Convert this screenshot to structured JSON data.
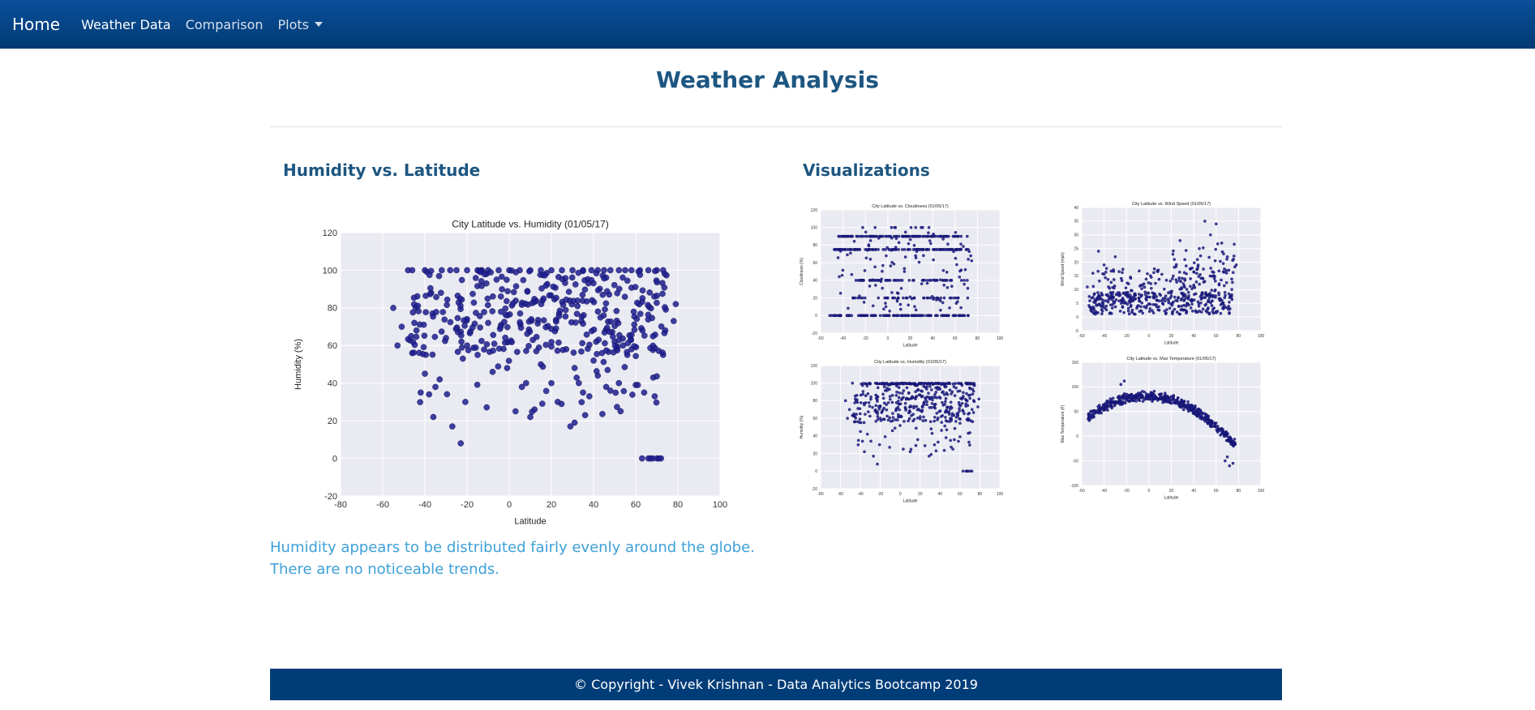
{
  "nav": {
    "brand": "Home",
    "items": [
      {
        "label": "Weather Data",
        "active": true
      },
      {
        "label": "Comparison",
        "active": false
      },
      {
        "label": "Plots",
        "active": false,
        "dropdown": true
      }
    ]
  },
  "page": {
    "title": "Weather Analysis"
  },
  "main": {
    "heading": "Humidity vs. Latitude",
    "description": "Humidity appears to be distributed fairly evenly around the globe. There are no noticeable trends."
  },
  "sidebar": {
    "heading": "Visualizations"
  },
  "footer": {
    "text": "© Copyright - Vivek Krishnan - Data Analytics Bootcamp 2019"
  },
  "colors": {
    "navbar_top": "#0b4f9a",
    "navbar_bottom": "#003a73",
    "heading": "#1d5681",
    "description": "#3ea0d8",
    "footer_bg": "#003d78",
    "plot_bg": "#eaeaf2",
    "marker": "#1f1f8f"
  },
  "chart_data": [
    {
      "id": "main",
      "type": "scatter",
      "title": "City Latitude vs. Humidity (01/05/17)",
      "xlabel": "Latitude",
      "ylabel": "Humidity (%)",
      "xlim": [
        -80,
        100
      ],
      "ylim": [
        -20,
        120
      ],
      "xticks": [
        -80,
        -60,
        -40,
        -20,
        0,
        20,
        40,
        60,
        80,
        100
      ],
      "yticks": [
        -20,
        0,
        20,
        40,
        60,
        80,
        100,
        120
      ],
      "grid": true,
      "seed": 11,
      "points": [
        [
          -55,
          80
        ],
        [
          -53,
          60
        ],
        [
          -51,
          70
        ],
        [
          -48,
          100
        ],
        [
          -46,
          100
        ],
        [
          -46,
          56
        ],
        [
          -45,
          72
        ],
        [
          -44,
          68
        ],
        [
          -42,
          35
        ],
        [
          -40,
          45
        ],
        [
          -38,
          34
        ],
        [
          -37,
          88
        ],
        [
          -36,
          22
        ],
        [
          -35,
          38
        ],
        [
          -33,
          42
        ],
        [
          -30,
          64
        ],
        [
          -27,
          17
        ],
        [
          -23,
          8
        ],
        [
          -22,
          53
        ],
        [
          -20,
          60
        ],
        [
          -15,
          55
        ],
        [
          -10,
          72
        ],
        [
          -6,
          95
        ],
        [
          -1,
          48
        ],
        [
          3,
          25
        ],
        [
          6,
          38
        ],
        [
          8,
          40
        ],
        [
          10,
          22
        ],
        [
          12,
          26
        ],
        [
          15,
          50
        ],
        [
          20,
          40
        ],
        [
          23,
          30
        ],
        [
          27,
          58
        ],
        [
          29,
          17
        ],
        [
          31,
          19
        ],
        [
          33,
          40
        ],
        [
          35,
          35
        ],
        [
          36,
          23
        ],
        [
          38,
          33
        ],
        [
          40,
          52
        ],
        [
          42,
          44
        ],
        [
          44,
          56
        ],
        [
          46,
          38
        ],
        [
          48,
          36
        ],
        [
          50,
          62
        ],
        [
          52,
          40
        ],
        [
          54,
          60
        ],
        [
          56,
          55
        ],
        [
          58,
          58
        ],
        [
          60,
          39
        ],
        [
          61,
          39
        ],
        [
          63,
          0
        ],
        [
          64,
          35
        ],
        [
          66,
          0
        ],
        [
          67,
          0
        ],
        [
          68,
          0
        ],
        [
          69,
          33
        ],
        [
          70,
          0
        ],
        [
          71,
          0
        ],
        [
          72,
          0
        ],
        [
          73,
          55
        ],
        [
          74,
          68
        ],
        [
          78,
          73
        ],
        [
          79,
          82
        ],
        [
          73,
          100
        ],
        [
          70,
          100
        ],
        [
          66,
          100
        ],
        [
          62,
          100
        ],
        [
          58,
          100
        ],
        [
          55,
          100
        ],
        [
          52,
          100
        ],
        [
          48,
          100
        ],
        [
          45,
          100
        ],
        [
          42,
          100
        ],
        [
          39,
          100
        ],
        [
          35,
          100
        ],
        [
          30,
          100
        ],
        [
          25,
          100
        ],
        [
          20,
          100
        ],
        [
          15,
          100
        ],
        [
          10,
          100
        ],
        [
          5,
          100
        ],
        [
          0,
          100
        ],
        [
          -5,
          100
        ],
        [
          -10,
          100
        ],
        [
          -15,
          100
        ],
        [
          -20,
          100
        ],
        [
          -25,
          100
        ],
        [
          -28,
          100
        ],
        [
          -32,
          100
        ],
        [
          -40,
          100
        ],
        [
          -13,
          100
        ]
      ],
      "bands": [
        {
          "x": [
            -48,
            75
          ],
          "y": [
            55,
            100
          ],
          "n": 300
        },
        {
          "x": [
            -45,
            70
          ],
          "y": [
            20,
            95
          ],
          "n": 70
        }
      ]
    },
    {
      "id": "cloudiness",
      "type": "scatter",
      "title": "City Latitude vs. Cloudiness (01/05/17)",
      "xlabel": "Latitude",
      "ylabel": "Cloudiness (%)",
      "xlim": [
        -60,
        100
      ],
      "ylim": [
        -20,
        120
      ],
      "xticks": [
        -60,
        -40,
        -20,
        0,
        20,
        40,
        60,
        80,
        100
      ],
      "yticks": [
        -20,
        0,
        20,
        40,
        60,
        80,
        100,
        120
      ],
      "grid": true,
      "seed": 23,
      "rows": [
        {
          "y": 0,
          "x": [
            -52,
            72
          ],
          "n": 130
        },
        {
          "y": 20,
          "x": [
            -35,
            72
          ],
          "n": 40
        },
        {
          "y": 40,
          "x": [
            -30,
            72
          ],
          "n": 60
        },
        {
          "y": 75,
          "x": [
            -48,
            72
          ],
          "n": 120
        },
        {
          "y": 90,
          "x": [
            -45,
            72
          ],
          "n": 110
        },
        {
          "y": 100,
          "x": [
            -25,
            40
          ],
          "n": 10
        }
      ],
      "bands": [
        {
          "x": [
            -45,
            75
          ],
          "y": [
            5,
            95
          ],
          "n": 120
        }
      ]
    },
    {
      "id": "windspeed",
      "type": "scatter",
      "title": "City Latitude vs. Wind Speed (01/05/17)",
      "xlabel": "Latitude",
      "ylabel": "Wind Speed (mph)",
      "xlim": [
        -60,
        100
      ],
      "ylim": [
        -5,
        40
      ],
      "xticks": [
        -60,
        -40,
        -20,
        0,
        20,
        40,
        60,
        80,
        100
      ],
      "yticks": [
        -5,
        0,
        5,
        10,
        15,
        20,
        25,
        30,
        35,
        40
      ],
      "grid": true,
      "seed": 37,
      "points": [
        [
          -45,
          24
        ],
        [
          -40,
          19
        ],
        [
          -30,
          22
        ],
        [
          50,
          35
        ],
        [
          60,
          34
        ],
        [
          65,
          27
        ],
        [
          70,
          22
        ],
        [
          78,
          19
        ],
        [
          55,
          30
        ],
        [
          45,
          25
        ],
        [
          -50,
          16
        ],
        [
          -55,
          11
        ]
      ],
      "bands": [
        {
          "x": [
            -55,
            75
          ],
          "y": [
            1,
            9
          ],
          "n": 330
        },
        {
          "x": [
            -50,
            75
          ],
          "y": [
            6,
            18
          ],
          "n": 150
        },
        {
          "x": [
            20,
            78
          ],
          "y": [
            12,
            28
          ],
          "n": 45
        }
      ]
    },
    {
      "id": "humidity_small",
      "type": "scatter",
      "title": "City Latitude vs. Humidity (01/05/17)",
      "xlabel": "Latitude",
      "ylabel": "Humidity (%)",
      "xlim": [
        -80,
        100
      ],
      "ylim": [
        -20,
        120
      ],
      "xticks": [
        -80,
        -60,
        -40,
        -20,
        0,
        20,
        40,
        60,
        80,
        100
      ],
      "yticks": [
        -20,
        0,
        20,
        40,
        60,
        80,
        100,
        120
      ],
      "grid": true,
      "seed": 11,
      "points": [
        [
          -55,
          80
        ],
        [
          -53,
          60
        ],
        [
          -51,
          70
        ],
        [
          -48,
          100
        ],
        [
          -46,
          56
        ],
        [
          -42,
          35
        ],
        [
          -40,
          45
        ],
        [
          -38,
          34
        ],
        [
          -36,
          22
        ],
        [
          -33,
          42
        ],
        [
          -27,
          17
        ],
        [
          -23,
          8
        ],
        [
          -20,
          60
        ],
        [
          3,
          25
        ],
        [
          10,
          22
        ],
        [
          29,
          17
        ],
        [
          31,
          19
        ],
        [
          36,
          23
        ],
        [
          38,
          33
        ],
        [
          46,
          38
        ],
        [
          60,
          39
        ],
        [
          63,
          0
        ],
        [
          66,
          0
        ],
        [
          67,
          0
        ],
        [
          68,
          0
        ],
        [
          70,
          0
        ],
        [
          72,
          0
        ],
        [
          69,
          33
        ],
        [
          79,
          82
        ],
        [
          78,
          73
        ]
      ],
      "bands": [
        {
          "x": [
            -48,
            75
          ],
          "y": [
            55,
            100
          ],
          "n": 300
        },
        {
          "x": [
            -45,
            70
          ],
          "y": [
            20,
            95
          ],
          "n": 70
        },
        {
          "x": [
            -35,
            75
          ],
          "y": [
            99,
            100
          ],
          "n": 120
        }
      ]
    },
    {
      "id": "temperature",
      "type": "scatter",
      "title": "City Latitude vs. Max Temperature (01/05/17)",
      "xlabel": "Latitude",
      "ylabel": "Max Temperature (F)",
      "xlim": [
        -60,
        100
      ],
      "ylim": [
        -100,
        150
      ],
      "xticks": [
        -60,
        -40,
        -20,
        0,
        20,
        40,
        60,
        80,
        100
      ],
      "yticks": [
        -100,
        -50,
        0,
        50,
        100,
        150
      ],
      "grid": true,
      "seed": 53,
      "curve": {
        "x": [
          -55,
          77
        ],
        "n": 520,
        "knots": [
          [
            -55,
            40
          ],
          [
            -40,
            60
          ],
          [
            -20,
            78
          ],
          [
            0,
            82
          ],
          [
            20,
            76
          ],
          [
            40,
            55
          ],
          [
            60,
            20
          ],
          [
            75,
            -15
          ]
        ],
        "spread": 12
      },
      "points": [
        [
          -22,
          112
        ],
        [
          -25,
          105
        ],
        [
          72,
          -60
        ],
        [
          75,
          -55
        ],
        [
          68,
          -50
        ],
        [
          70,
          -42
        ]
      ]
    }
  ]
}
